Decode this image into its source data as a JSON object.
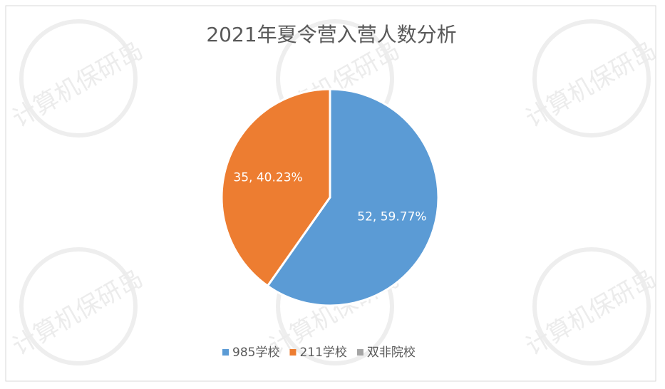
{
  "chart_data": {
    "type": "pie",
    "title": "2021年夏令营入营人数分析",
    "categories": [
      "985学校",
      "211学校",
      "双非院校"
    ],
    "values": [
      52,
      35,
      0
    ],
    "value_labels": [
      "52, 59.77%",
      "35, 40.23%",
      null
    ],
    "colors": [
      "#5b9bd5",
      "#ed7d31",
      "#a5a5a5"
    ],
    "legend": "bottom",
    "watermark": "计算机保研岛"
  }
}
